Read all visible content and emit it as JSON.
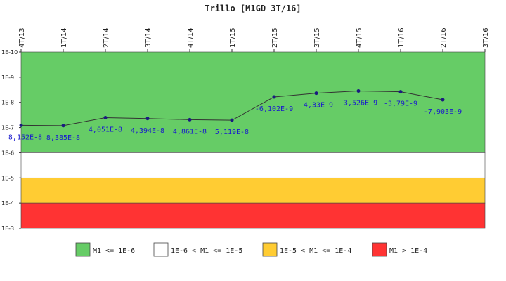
{
  "chart_data": {
    "type": "line",
    "title": "Trillo [M1GD 3T/16]",
    "categories": [
      "4T/13",
      "1T/14",
      "2T/14",
      "3T/14",
      "4T/14",
      "1T/15",
      "2T/15",
      "3T/15",
      "4T/15",
      "1T/16",
      "2T/16",
      "3T/16"
    ],
    "y_scale": "log",
    "y_axis_inverted": true,
    "y_ticks": [
      "1E-10",
      "1E-9",
      "1E-8",
      "1E-7",
      "1E-6",
      "1E-5",
      "1E-4",
      "1E-3"
    ],
    "ylim": [
      1e-10,
      0.001
    ],
    "series": [
      {
        "values": [
          8.152e-08,
          8.385e-08,
          4.051e-08,
          4.394e-08,
          4.861e-08,
          5.119e-08,
          -6.102e-09,
          -4.33e-09,
          -3.526e-09,
          -3.79e-09,
          -7.903e-09,
          null
        ],
        "labels": [
          "8,152E-8",
          "8,385E-8",
          "4,051E-8",
          "4,394E-8",
          "4,861E-8",
          "5,119E-8",
          "-6,102E-9",
          "-4,33E-9",
          "-3,526E-9",
          "-3,79E-9",
          "-7,903E-9",
          ""
        ]
      }
    ],
    "bands": [
      {
        "from": 1e-10,
        "to": 1e-06,
        "color": "#66cc66",
        "legend": "M1 <= 1E-6"
      },
      {
        "from": 1e-06,
        "to": 1e-05,
        "color": "#ffffff",
        "legend": "1E-6 < M1 <= 1E-5"
      },
      {
        "from": 1e-05,
        "to": 0.0001,
        "color": "#ffcc33",
        "legend": "1E-5 < M1 <= 1E-4"
      },
      {
        "from": 0.0001,
        "to": 0.001,
        "color": "#ff3333",
        "legend": "M1 > 1E-4"
      }
    ],
    "colors": {
      "line": "#333333",
      "marker": "#1a1a80",
      "label": "#1a1acd"
    },
    "legend_position": "bottom"
  }
}
